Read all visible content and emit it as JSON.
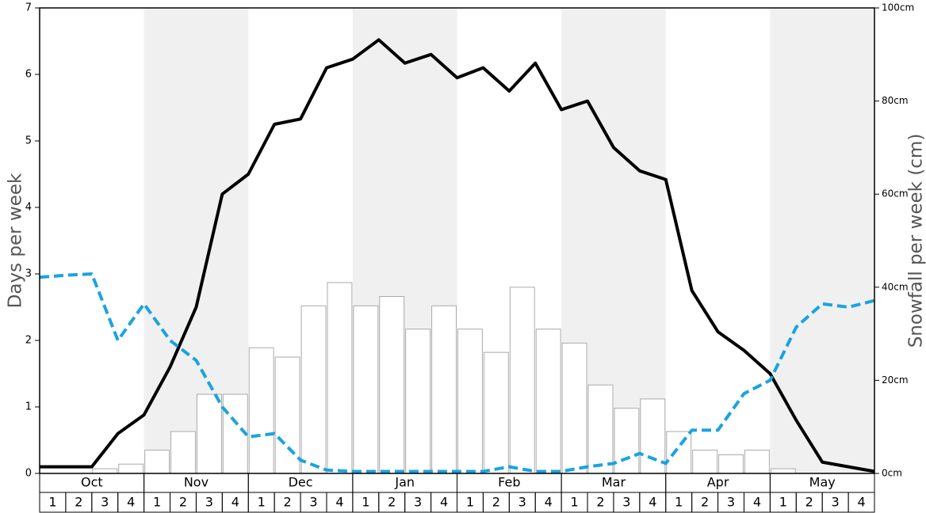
{
  "chart_data": {
    "type": "bar",
    "y_label": "Days per week",
    "y2_label": "Snowfall per week (cm)",
    "months": [
      "Oct",
      "Nov",
      "Dec",
      "Jan",
      "Feb",
      "Mar",
      "Apr",
      "May"
    ],
    "categories": [
      1,
      2,
      3,
      4,
      1,
      2,
      3,
      4,
      1,
      2,
      3,
      4,
      1,
      2,
      3,
      4,
      1,
      2,
      3,
      4,
      1,
      2,
      3,
      4,
      1,
      2,
      3,
      4,
      1,
      2,
      3,
      4
    ],
    "bars": {
      "axis": "y2",
      "fill": "#ffffff",
      "stroke": "#aaaaaa",
      "values": [
        0,
        0,
        1,
        2,
        5,
        9,
        17,
        17,
        27,
        25,
        36,
        41,
        36,
        38,
        31,
        36,
        31,
        26,
        40,
        31,
        28,
        19,
        14,
        16,
        9,
        5,
        4,
        5,
        1,
        0,
        0,
        0
      ]
    },
    "xlim": [
      0,
      32
    ],
    "series": [
      {
        "color": "#000000",
        "dash": false,
        "axis": "y",
        "x": [
          0,
          1,
          2,
          3,
          4,
          5,
          6,
          7,
          8,
          9,
          10,
          11,
          12,
          13,
          14,
          15,
          16,
          17,
          18,
          19,
          20,
          21,
          22,
          23,
          24,
          25,
          26,
          27,
          28,
          29,
          30,
          31,
          32
        ],
        "values": [
          0.1,
          0.1,
          0.1,
          0.6,
          0.88,
          1.6,
          2.5,
          4.2,
          4.5,
          5.25,
          5.33,
          6.1,
          6.23,
          6.52,
          6.17,
          6.3,
          5.95,
          6.1,
          5.75,
          6.17,
          5.47,
          5.6,
          4.9,
          4.55,
          4.42,
          2.75,
          2.13,
          1.85,
          1.5,
          0.8,
          0.17,
          0.1,
          0.03
        ]
      },
      {
        "color": "#1aa3e0",
        "dash": true,
        "axis": "y",
        "x": [
          0,
          1,
          2,
          3,
          4,
          5,
          6,
          7,
          8,
          9,
          10,
          11,
          12,
          13,
          14,
          15,
          16,
          17,
          18,
          19,
          20,
          21,
          22,
          23,
          24,
          25,
          26,
          27,
          28,
          29,
          30,
          31,
          32
        ],
        "values": [
          2.95,
          2.98,
          3.0,
          2.0,
          2.55,
          2.0,
          1.7,
          1.0,
          0.55,
          0.6,
          0.2,
          0.05,
          0.03,
          0.03,
          0.03,
          0.03,
          0.03,
          0.03,
          0.1,
          0.03,
          0.03,
          0.1,
          0.15,
          0.3,
          0.15,
          0.65,
          0.65,
          1.2,
          1.4,
          2.2,
          2.55,
          2.5,
          2.6
        ]
      }
    ],
    "ylim": [
      0,
      7
    ],
    "yticks": [
      0,
      1,
      2,
      3,
      4,
      5,
      6,
      7
    ],
    "y2lim": [
      0,
      100
    ],
    "y2ticks": [
      {
        "value": 0,
        "label": "0cm"
      },
      {
        "value": 20,
        "label": "20cm"
      },
      {
        "value": 40,
        "label": "40cm"
      },
      {
        "value": 60,
        "label": "60cm"
      },
      {
        "value": 80,
        "label": "80cm"
      },
      {
        "value": 100,
        "label": "100cm"
      }
    ],
    "band_color": "#f0f0f0"
  }
}
